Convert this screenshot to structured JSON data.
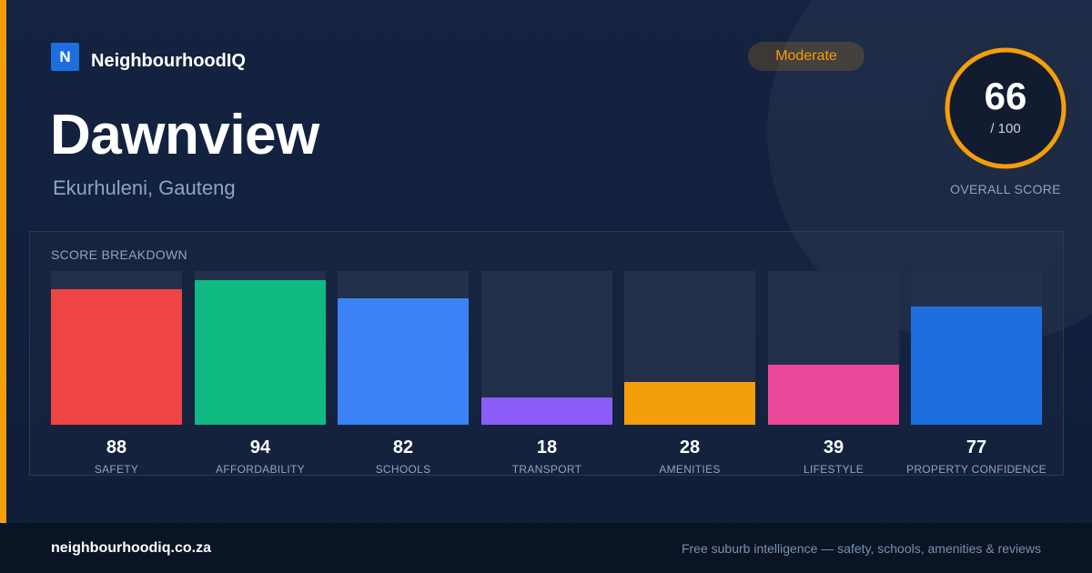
{
  "brand": {
    "logo_letter": "N",
    "name": "NeighbourhoodIQ"
  },
  "suburb": {
    "name": "Dawnview",
    "location": "Ekurhuleni, Gauteng"
  },
  "rating": {
    "label": "Moderate",
    "color": "#f59e0b"
  },
  "overall": {
    "score": "66",
    "max_label": "/ 100",
    "fraction": 0.66,
    "caption": "OVERALL SCORE"
  },
  "breakdown": {
    "title": "SCORE BREAKDOWN",
    "items": [
      {
        "label": "SAFETY",
        "value": 88,
        "value_label": "88",
        "color": "#ef4444"
      },
      {
        "label": "AFFORDABILITY",
        "value": 94,
        "value_label": "94",
        "color": "#10b981"
      },
      {
        "label": "SCHOOLS",
        "value": 82,
        "value_label": "82",
        "color": "#3b82f6"
      },
      {
        "label": "TRANSPORT",
        "value": 18,
        "value_label": "18",
        "color": "#8b5cf6"
      },
      {
        "label": "AMENITIES",
        "value": 28,
        "value_label": "28",
        "color": "#f59e0b"
      },
      {
        "label": "LIFESTYLE",
        "value": 39,
        "value_label": "39",
        "color": "#ec4899"
      },
      {
        "label": "PROPERTY CONFIDENCE",
        "value": 77,
        "value_label": "77",
        "color": "#1d6fe0"
      }
    ]
  },
  "footer": {
    "domain": "neighbourhoodiq.co.za",
    "tagline": "Free suburb intelligence — safety, schools, amenities & reviews"
  }
}
